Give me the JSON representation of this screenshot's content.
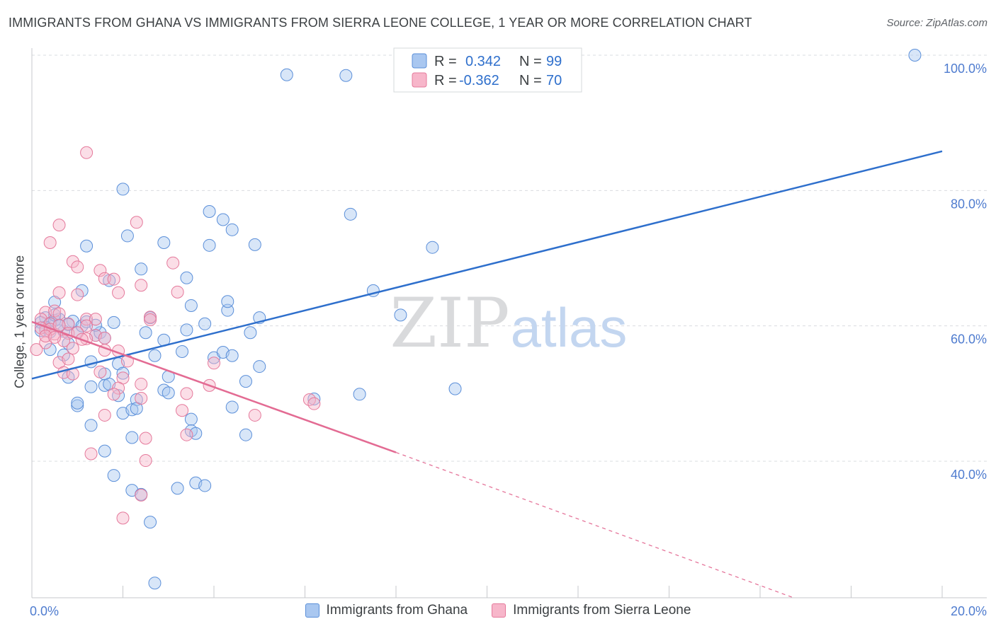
{
  "chart_data": {
    "type": "scatter",
    "title": "IMMIGRANTS FROM GHANA VS IMMIGRANTS FROM SIERRA LEONE COLLEGE, 1 YEAR OR MORE CORRELATION CHART",
    "source": "Source: ZipAtlas.com",
    "xlabel": "",
    "ylabel": "College, 1 year or more",
    "xlim": [
      0,
      20
    ],
    "ylim": [
      20,
      102
    ],
    "x_tick_labels": [
      "0.0%",
      "20.0%"
    ],
    "y_ticks": [
      40,
      60,
      80,
      100
    ],
    "y_tick_labels": [
      "40.0%",
      "60.0%",
      "80.0%",
      "100.0%"
    ],
    "watermark": {
      "zip": "ZIP",
      "atlas": "atlas"
    },
    "legend": [
      {
        "r_label": "R =",
        "r_value": "0.342",
        "n_label": "N =",
        "n_value": "99"
      },
      {
        "r_label": "R =",
        "r_value": "-0.362",
        "n_label": "N =",
        "n_value": "70"
      }
    ],
    "colors": {
      "ghana_fill": "#a9c7f0",
      "ghana_stroke": "#5b8fd9",
      "ghana_line": "#2e6fcc",
      "sl_fill": "#f7b6ca",
      "sl_stroke": "#e5799b",
      "sl_line": "#e36b93",
      "value_text": "#2e6fcc",
      "grid": "#dadce0"
    },
    "series": [
      {
        "name": "Immigrants from Ghana",
        "trend": {
          "x0": 0.0,
          "y0": 52.2,
          "x1": 20.0,
          "y1": 85.8
        },
        "points": [
          [
            5.6,
            97.1
          ],
          [
            6.9,
            97.0
          ],
          [
            19.4,
            100.0
          ],
          [
            2.0,
            80.2
          ],
          [
            3.9,
            76.9
          ],
          [
            4.2,
            75.7
          ],
          [
            4.4,
            74.2
          ],
          [
            2.1,
            73.3
          ],
          [
            1.2,
            71.8
          ],
          [
            2.9,
            72.3
          ],
          [
            3.9,
            71.9
          ],
          [
            4.9,
            72.0
          ],
          [
            7.0,
            76.5
          ],
          [
            8.8,
            71.6
          ],
          [
            2.4,
            68.4
          ],
          [
            1.7,
            66.7
          ],
          [
            3.4,
            67.1
          ],
          [
            1.1,
            65.2
          ],
          [
            7.5,
            65.2
          ],
          [
            0.5,
            63.5
          ],
          [
            3.5,
            63.0
          ],
          [
            4.3,
            62.3
          ],
          [
            4.3,
            63.6
          ],
          [
            0.9,
            60.7
          ],
          [
            1.8,
            60.5
          ],
          [
            2.6,
            61.2
          ],
          [
            5.0,
            61.2
          ],
          [
            8.1,
            61.6
          ],
          [
            0.3,
            61.2
          ],
          [
            0.6,
            61.0
          ],
          [
            0.4,
            60.4
          ],
          [
            0.7,
            59.2
          ],
          [
            1.0,
            59.0
          ],
          [
            1.4,
            58.6
          ],
          [
            1.5,
            59.0
          ],
          [
            1.6,
            58.2
          ],
          [
            2.5,
            59.0
          ],
          [
            3.4,
            59.4
          ],
          [
            3.8,
            60.3
          ],
          [
            4.8,
            59.0
          ],
          [
            0.8,
            57.4
          ],
          [
            2.9,
            57.9
          ],
          [
            0.4,
            56.5
          ],
          [
            0.7,
            55.7
          ],
          [
            2.7,
            55.6
          ],
          [
            3.3,
            56.2
          ],
          [
            4.0,
            55.3
          ],
          [
            4.2,
            56.1
          ],
          [
            4.4,
            55.6
          ],
          [
            1.3,
            54.7
          ],
          [
            1.9,
            54.4
          ],
          [
            1.6,
            52.9
          ],
          [
            2.0,
            53.0
          ],
          [
            3.0,
            52.5
          ],
          [
            5.0,
            54.0
          ],
          [
            0.8,
            52.4
          ],
          [
            1.3,
            51.0
          ],
          [
            1.6,
            51.2
          ],
          [
            1.7,
            51.4
          ],
          [
            2.9,
            50.5
          ],
          [
            3.0,
            50.1
          ],
          [
            4.7,
            51.8
          ],
          [
            1.9,
            49.7
          ],
          [
            2.3,
            49.1
          ],
          [
            6.2,
            49.2
          ],
          [
            7.2,
            49.9
          ],
          [
            9.3,
            50.7
          ],
          [
            1.0,
            48.2
          ],
          [
            1.0,
            48.6
          ],
          [
            2.0,
            47.1
          ],
          [
            2.2,
            47.6
          ],
          [
            2.3,
            47.8
          ],
          [
            4.4,
            48.0
          ],
          [
            1.3,
            45.3
          ],
          [
            3.5,
            46.2
          ],
          [
            3.5,
            44.5
          ],
          [
            3.6,
            44.1
          ],
          [
            4.7,
            43.9
          ],
          [
            2.2,
            43.5
          ],
          [
            1.6,
            41.5
          ],
          [
            1.8,
            37.9
          ],
          [
            2.2,
            35.7
          ],
          [
            2.4,
            35.1
          ],
          [
            3.2,
            36.0
          ],
          [
            3.6,
            36.8
          ],
          [
            3.8,
            36.4
          ],
          [
            2.6,
            31.0
          ],
          [
            2.7,
            22.0
          ],
          [
            0.2,
            60.5
          ],
          [
            0.3,
            59.8
          ],
          [
            0.5,
            60.8
          ],
          [
            0.6,
            60.0
          ],
          [
            1.1,
            60.0
          ],
          [
            1.2,
            60.6
          ],
          [
            0.2,
            59.3
          ],
          [
            0.4,
            59.1
          ],
          [
            0.8,
            60.2
          ],
          [
            1.4,
            60.1
          ],
          [
            0.5,
            61.6
          ]
        ]
      },
      {
        "name": "Immigrants from Sierra Leone",
        "trend": {
          "x0": 0.0,
          "y0": 60.6,
          "x1": 8.0,
          "y1": 41.3,
          "dash_x1": 20.0,
          "dash_y1": 11.8
        },
        "points": [
          [
            1.2,
            85.6
          ],
          [
            0.6,
            74.9
          ],
          [
            2.3,
            75.3
          ],
          [
            0.4,
            72.3
          ],
          [
            0.9,
            69.5
          ],
          [
            1.0,
            68.7
          ],
          [
            1.5,
            68.2
          ],
          [
            1.6,
            67.0
          ],
          [
            1.8,
            66.9
          ],
          [
            2.4,
            66.0
          ],
          [
            3.1,
            69.3
          ],
          [
            0.6,
            64.9
          ],
          [
            1.0,
            64.6
          ],
          [
            1.9,
            64.9
          ],
          [
            3.2,
            65.0
          ],
          [
            0.3,
            62.0
          ],
          [
            0.5,
            62.2
          ],
          [
            0.6,
            61.8
          ],
          [
            2.6,
            61.3
          ],
          [
            2.6,
            60.9
          ],
          [
            0.2,
            61.0
          ],
          [
            0.4,
            60.3
          ],
          [
            0.8,
            60.3
          ],
          [
            1.2,
            61.0
          ],
          [
            1.4,
            61.0
          ],
          [
            1.2,
            60.0
          ],
          [
            0.3,
            59.3
          ],
          [
            0.5,
            58.8
          ],
          [
            0.8,
            58.9
          ],
          [
            1.0,
            59.0
          ],
          [
            1.4,
            58.6
          ],
          [
            1.6,
            58.2
          ],
          [
            0.3,
            57.5
          ],
          [
            0.7,
            57.8
          ],
          [
            1.2,
            58.1
          ],
          [
            0.1,
            56.5
          ],
          [
            0.9,
            56.7
          ],
          [
            1.6,
            56.4
          ],
          [
            1.9,
            56.3
          ],
          [
            0.6,
            54.6
          ],
          [
            0.8,
            55.1
          ],
          [
            2.1,
            54.8
          ],
          [
            4.0,
            54.5
          ],
          [
            0.7,
            53.1
          ],
          [
            0.9,
            52.9
          ],
          [
            1.5,
            53.2
          ],
          [
            2.0,
            52.3
          ],
          [
            2.4,
            51.4
          ],
          [
            1.9,
            50.8
          ],
          [
            3.4,
            50.0
          ],
          [
            3.9,
            51.2
          ],
          [
            1.8,
            49.9
          ],
          [
            2.4,
            49.3
          ],
          [
            3.3,
            47.5
          ],
          [
            6.1,
            49.1
          ],
          [
            6.2,
            48.5
          ],
          [
            1.6,
            46.8
          ],
          [
            4.9,
            46.8
          ],
          [
            2.5,
            43.4
          ],
          [
            3.4,
            43.9
          ],
          [
            1.3,
            41.1
          ],
          [
            2.5,
            40.1
          ],
          [
            2.4,
            35.0
          ],
          [
            2.0,
            31.6
          ],
          [
            0.2,
            59.7
          ],
          [
            0.4,
            59.5
          ],
          [
            0.6,
            60.1
          ],
          [
            1.1,
            58.0
          ],
          [
            0.3,
            58.5
          ],
          [
            0.5,
            58.3
          ]
        ]
      }
    ]
  }
}
